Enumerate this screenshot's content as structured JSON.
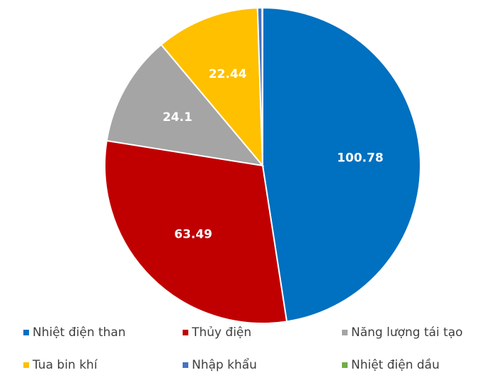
{
  "chart_data": {
    "type": "pie",
    "categories": [
      "Nhiệt điện than",
      "Thủy điện",
      "Năng lượng tái tạo",
      "Tua bin khí",
      "Nhập khẩu",
      "Nhiệt điện dầu"
    ],
    "values": [
      100.78,
      63.49,
      24.1,
      22.44,
      1.0,
      0.1
    ],
    "colors": [
      "#0070c0",
      "#c00000",
      "#a5a5a5",
      "#ffc000",
      "#4472c4",
      "#70ad47"
    ],
    "legend": "bottom"
  }
}
